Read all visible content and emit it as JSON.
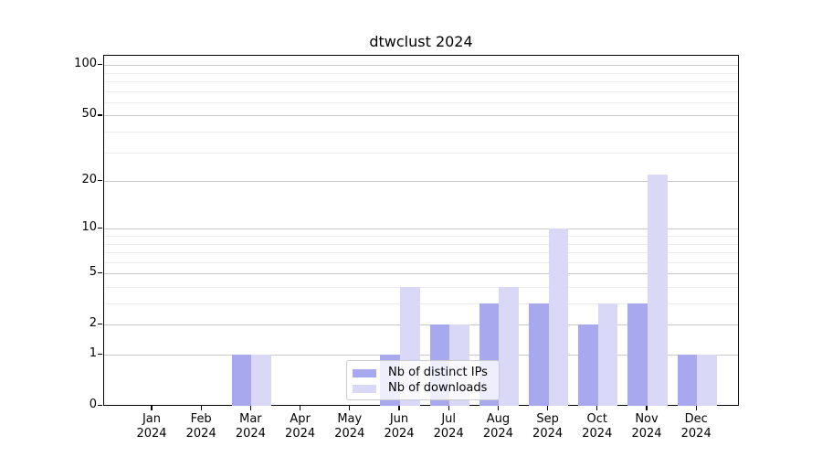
{
  "chart_data": {
    "type": "bar",
    "title": "dtwclust 2024",
    "categories": [
      "Jan",
      "Feb",
      "Mar",
      "Apr",
      "May",
      "Jun",
      "Jul",
      "Aug",
      "Sep",
      "Oct",
      "Nov",
      "Dec"
    ],
    "year_label": "2024",
    "series": [
      {
        "name": "Nb of distinct IPs",
        "color": "#a8a8ef",
        "values": [
          0,
          0,
          1,
          0,
          0,
          1,
          2,
          3,
          3,
          2,
          3,
          1
        ]
      },
      {
        "name": "Nb of downloads",
        "color": "#d9d9f7",
        "values": [
          0,
          0,
          1,
          0,
          0,
          4,
          2,
          4,
          10,
          3,
          22,
          1
        ]
      }
    ],
    "scale": "log1p",
    "ylim": [
      0,
      115
    ],
    "y_major_ticks": [
      0,
      1,
      2,
      5,
      10,
      20,
      50,
      100
    ],
    "y_minor_gridlines": [
      3,
      4,
      6,
      7,
      8,
      9,
      30,
      40,
      60,
      70,
      80,
      90
    ],
    "grid": true,
    "legend_position": "lower center"
  }
}
